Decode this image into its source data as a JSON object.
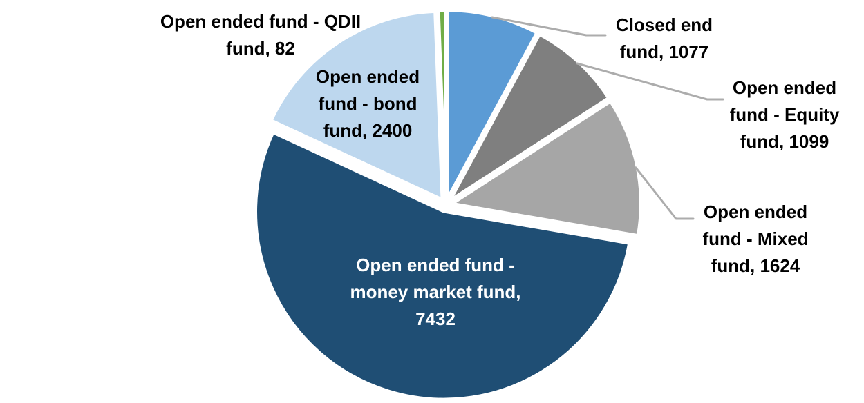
{
  "chart_data": {
    "type": "pie",
    "title": "",
    "total": 13714,
    "direction": "clockwise",
    "start_angle_deg": 0,
    "legend_position": "none",
    "leader_line_color": "#ACACAC",
    "label_text_color": "#000000",
    "inside_label_text_color": "#FFFFFF",
    "background_color": "#FFFFFF",
    "slice_border_color": "#FFFFFF",
    "slices": [
      {
        "label": "Closed end fund",
        "value": 1077,
        "color": "#5B9BD5",
        "label_lines": [
          "Closed end",
          "fund, 1077"
        ],
        "label_placement": "outside"
      },
      {
        "label": "Open ended fund - Equity fund",
        "value": 1099,
        "color": "#7F7F7F",
        "label_lines": [
          "Open ended",
          "fund - Equity",
          "fund, 1099"
        ],
        "label_placement": "outside"
      },
      {
        "label": "Open ended fund - Mixed fund",
        "value": 1624,
        "color": "#A6A6A6",
        "label_lines": [
          "Open ended",
          "fund - Mixed",
          "fund, 1624"
        ],
        "label_placement": "outside"
      },
      {
        "label": "Open ended fund - money market fund",
        "value": 7432,
        "color": "#1F4E74",
        "label_lines": [
          "Open ended fund -",
          "money market fund,",
          "7432"
        ],
        "label_placement": "inside"
      },
      {
        "label": "Open ended fund - bond fund",
        "value": 2400,
        "color": "#BDD7EE",
        "label_lines": [
          "Open ended",
          "fund - bond",
          "fund, 2400"
        ],
        "label_placement": "on-slice"
      },
      {
        "label": "Open ended fund - QDII fund",
        "value": 82,
        "color": "#70AD47",
        "label_lines": [
          "Open ended fund - QDII",
          "fund, 82"
        ],
        "label_placement": "outside"
      }
    ]
  }
}
